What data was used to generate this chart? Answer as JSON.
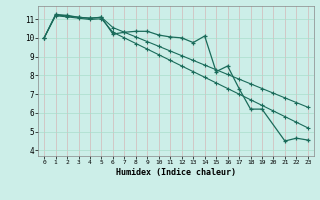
{
  "xlabel": "Humidex (Indice chaleur)",
  "bg_color": "#cceee8",
  "grid_color": "#aaddcc",
  "line_color": "#1a6b5a",
  "xlim": [
    -0.5,
    23.5
  ],
  "ylim": [
    3.7,
    11.7
  ],
  "yticks": [
    4,
    5,
    6,
    7,
    8,
    9,
    10,
    11
  ],
  "xticks": [
    0,
    1,
    2,
    3,
    4,
    5,
    6,
    7,
    8,
    9,
    10,
    11,
    12,
    13,
    14,
    15,
    16,
    17,
    18,
    19,
    20,
    21,
    22,
    23
  ],
  "line_a_x": [
    0,
    1,
    2,
    3,
    4,
    5,
    6,
    7,
    8,
    9,
    10,
    11,
    12,
    13,
    14,
    15,
    16,
    17,
    18,
    19,
    21,
    22,
    23
  ],
  "line_a_y": [
    10.0,
    11.25,
    11.2,
    11.1,
    11.05,
    11.1,
    10.2,
    10.3,
    10.35,
    10.35,
    10.15,
    10.05,
    10.0,
    9.75,
    10.1,
    8.2,
    8.5,
    7.3,
    6.2,
    6.2,
    4.5,
    4.65,
    4.55
  ],
  "line_b_x": [
    0,
    1,
    2,
    3,
    4,
    5,
    6,
    7,
    8,
    9,
    10,
    11,
    12,
    13,
    14,
    15,
    16,
    17,
    18,
    19,
    20,
    21,
    22,
    23
  ],
  "line_b_y": [
    10.0,
    11.22,
    11.17,
    11.1,
    11.05,
    11.1,
    10.55,
    10.3,
    10.05,
    9.8,
    9.55,
    9.3,
    9.05,
    8.8,
    8.55,
    8.3,
    8.05,
    7.8,
    7.55,
    7.3,
    7.05,
    6.8,
    6.55,
    6.3
  ],
  "line_c_x": [
    0,
    1,
    2,
    3,
    4,
    5,
    6,
    7,
    8,
    9,
    10,
    11,
    12,
    13,
    14,
    15,
    16,
    17,
    18,
    19,
    20,
    21,
    22,
    23
  ],
  "line_c_y": [
    10.0,
    11.18,
    11.12,
    11.05,
    10.98,
    11.02,
    10.3,
    10.0,
    9.7,
    9.4,
    9.1,
    8.8,
    8.5,
    8.2,
    7.9,
    7.6,
    7.3,
    7.0,
    6.7,
    6.4,
    6.1,
    5.8,
    5.5,
    5.2
  ]
}
